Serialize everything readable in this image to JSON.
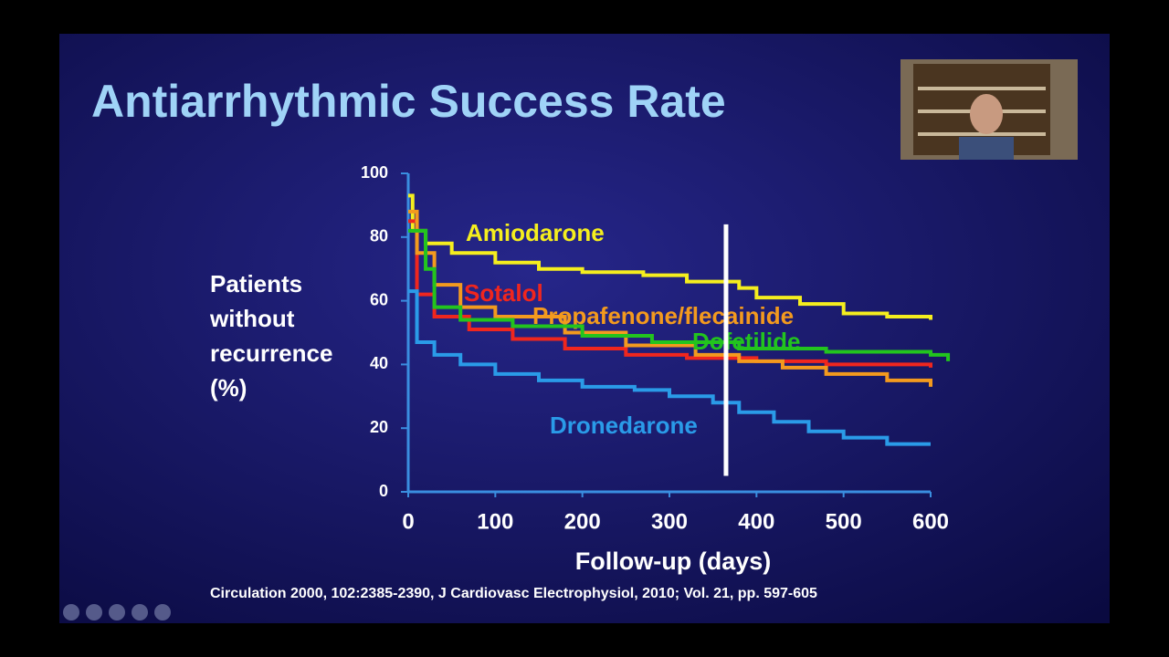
{
  "slide": {
    "title": "Antiarrhythmic Success Rate",
    "source": "Circulation 2000, 102:2385-2390, J Cardiovasc Electrophysiol, 2010; Vol. 21, pp. 597-605"
  },
  "chart_data": {
    "type": "line",
    "step": true,
    "xlabel": "Follow-up (days)",
    "ylabel": "Patients without recurrence (%)",
    "xlim": [
      0,
      600
    ],
    "ylim": [
      0,
      100
    ],
    "xticks": [
      0,
      100,
      200,
      300,
      400,
      500,
      600
    ],
    "yticks": [
      0,
      20,
      40,
      60,
      80,
      100
    ],
    "reference_line_x": 365,
    "reference_line_color": "#ffffff",
    "series": [
      {
        "name": "Amiodarone",
        "color": "#f5ee1e",
        "x": [
          0,
          5,
          20,
          50,
          100,
          150,
          200,
          270,
          320,
          380,
          400,
          450,
          500,
          550,
          600
        ],
        "values": [
          93,
          82,
          78,
          75,
          72,
          70,
          69,
          68,
          66,
          64,
          61,
          59,
          56,
          55,
          54
        ]
      },
      {
        "name": "Sotalol",
        "color": "#f0261e",
        "x": [
          0,
          10,
          30,
          70,
          120,
          180,
          250,
          320,
          400,
          480,
          600
        ],
        "values": [
          85,
          62,
          55,
          51,
          48,
          45,
          43,
          42,
          41,
          40,
          39
        ]
      },
      {
        "name": "Propafenone/flecainide",
        "color": "#f39a1e",
        "x": [
          0,
          10,
          30,
          60,
          100,
          180,
          250,
          330,
          380,
          430,
          480,
          550,
          600
        ],
        "values": [
          88,
          75,
          65,
          58,
          55,
          50,
          46,
          43,
          41,
          39,
          37,
          35,
          33
        ]
      },
      {
        "name": "Dofetilide",
        "color": "#22c41e",
        "x": [
          0,
          20,
          30,
          60,
          120,
          200,
          280,
          380,
          480,
          600,
          620
        ],
        "values": [
          82,
          70,
          58,
          54,
          52,
          49,
          47,
          45,
          44,
          43,
          41
        ]
      },
      {
        "name": "Dronedarone",
        "color": "#2a9be8",
        "x": [
          0,
          10,
          30,
          60,
          100,
          150,
          200,
          260,
          300,
          350,
          380,
          420,
          460,
          500,
          550,
          600
        ],
        "values": [
          63,
          47,
          43,
          40,
          37,
          35,
          33,
          32,
          30,
          28,
          25,
          22,
          19,
          17,
          15,
          15
        ]
      }
    ]
  }
}
